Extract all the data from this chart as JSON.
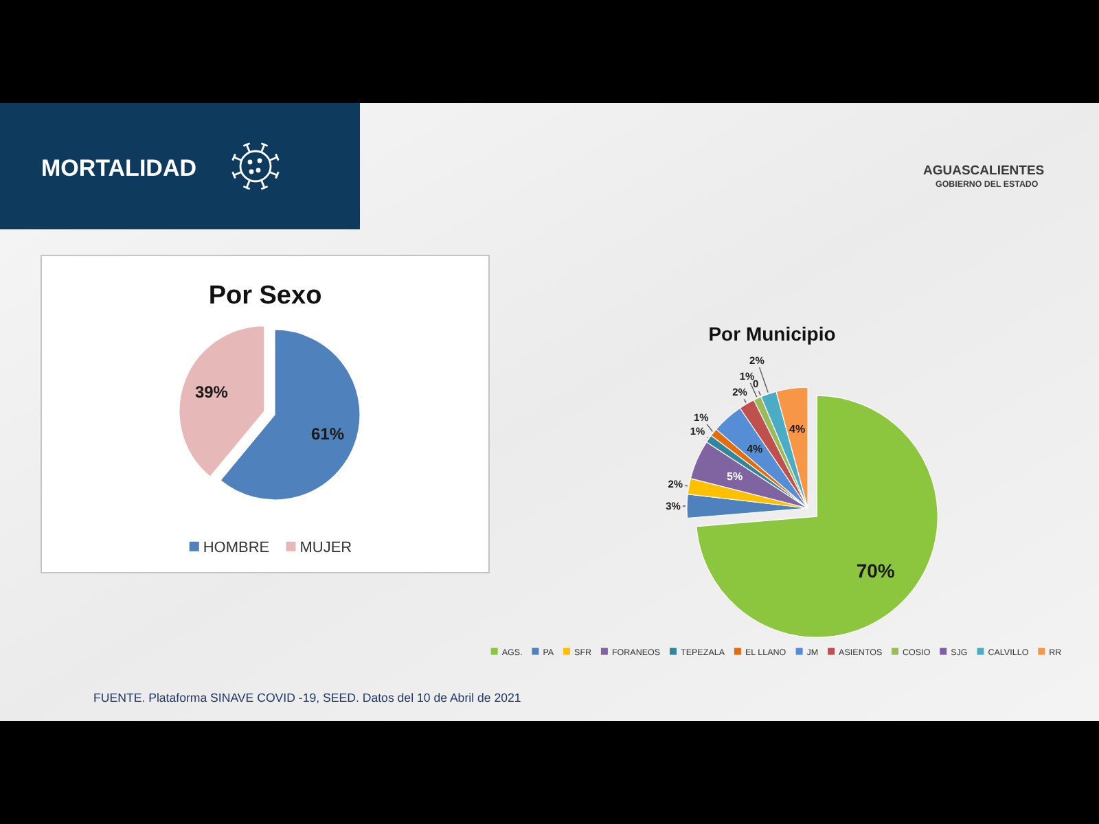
{
  "chart_data": [
    {
      "type": "other",
      "title": "MORTALIDAD",
      "annotations": [
        "AGUASCALIENTES",
        "GOBIERNO DEL ESTADO"
      ]
    },
    {
      "type": "pie",
      "title": "Por Sexo",
      "categories": [
        "HOMBRE",
        "MUJER"
      ],
      "values": [
        61,
        39
      ],
      "colors": [
        "#4f81bd",
        "#e6b9b8"
      ],
      "value_labels": [
        "61%",
        "39%"
      ],
      "legend": "bottom"
    },
    {
      "type": "pie",
      "title": "Por Municipio",
      "categories": [
        "AGS.",
        "PA",
        "SFR",
        "FORANEOS",
        "TEPEZALA",
        "EL LLANO",
        "JM",
        "ASIENTOS",
        "COSIO",
        "SJG",
        "CALVILLO",
        "RR"
      ],
      "values": [
        70,
        3,
        2,
        5,
        1,
        1,
        4,
        2,
        1,
        0,
        2,
        4
      ],
      "colors": [
        "#8cc63f",
        "#4f81bd",
        "#ffc000",
        "#8064a2",
        "#31859c",
        "#e46c0a",
        "#558ed5",
        "#c0504d",
        "#9bbb59",
        "#7f5fa8",
        "#4bacc6",
        "#f79646"
      ],
      "value_labels": [
        "70%",
        "3%",
        "2%",
        "5%",
        "1%",
        "1%",
        "4%",
        "2%",
        "1%",
        "0",
        "2%",
        "4%"
      ],
      "legend": "bottom"
    },
    {
      "type": "other",
      "annotations": [
        "FUENTE. Plataforma SINAVE COVID -19, SEED. Datos del 10 de Abril de 2021"
      ]
    }
  ]
}
